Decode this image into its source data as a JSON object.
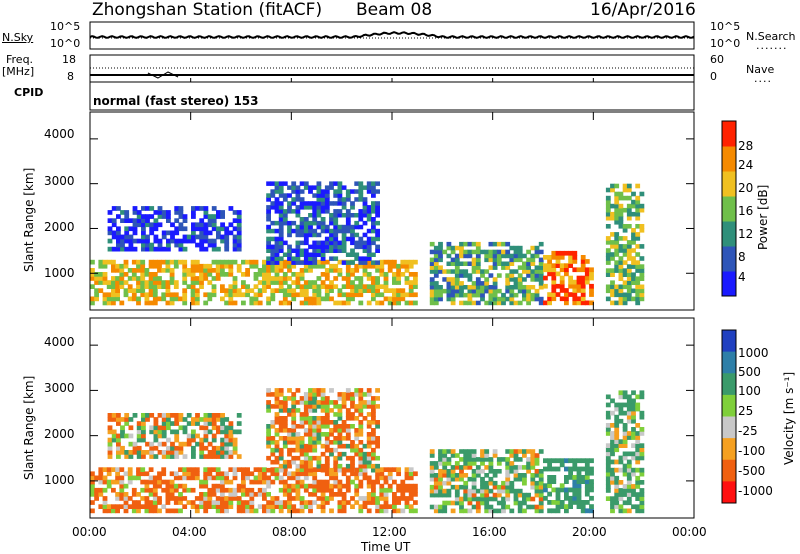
{
  "header": {
    "station": "Zhongshan Station (fitACF)",
    "beam": "Beam 08",
    "date": "16/Apr/2016"
  },
  "top_panels": {
    "nsky_label": "N.Sky",
    "nsky_ticks": [
      "10^5",
      "10^0"
    ],
    "nsearch_label": "N.Search",
    "nsearch_ticks": [
      "10^5",
      "10^0"
    ],
    "freq_label": "Freq.",
    "freq_unit": "[MHz]",
    "freq_ticks": [
      "18",
      "8"
    ],
    "nave_label": "Nave",
    "nave_ticks": [
      "60",
      "0"
    ],
    "cpid_label": "CPID",
    "mode_text": "normal (fast stereo) 153"
  },
  "chart_data": [
    {
      "type": "heatmap",
      "name": "Power",
      "ylabel": "Slant Range [km]",
      "xlabel": "Time UT",
      "x_ticks": [
        "00:00",
        "04:00",
        "08:00",
        "12:00",
        "16:00",
        "20:00",
        "00:00"
      ],
      "y_ticks": [
        1000,
        2000,
        3000,
        4000
      ],
      "ylim": [
        180,
        4600
      ],
      "colorbar": {
        "label": "Power [dB]",
        "ticks": [
          4,
          8,
          12,
          16,
          20,
          24,
          28
        ],
        "colors": [
          "#1a1aff",
          "#2e55b8",
          "#2f8f7a",
          "#6fbf4a",
          "#f0c020",
          "#f58a00",
          "#ff2200"
        ]
      },
      "regions": [
        {
          "t": [
            0.7,
            6.0
          ],
          "r": [
            1500,
            2500
          ],
          "v": 6
        },
        {
          "t": [
            0.0,
            13.0
          ],
          "r": [
            300,
            1300
          ],
          "v": 20
        },
        {
          "t": [
            7.0,
            11.5
          ],
          "r": [
            1200,
            3050
          ],
          "v": 8
        },
        {
          "t": [
            13.5,
            18.0
          ],
          "r": [
            300,
            1700
          ],
          "v": 14
        },
        {
          "t": [
            18.0,
            20.0
          ],
          "r": [
            300,
            1500
          ],
          "v": 24
        },
        {
          "t": [
            20.5,
            22.0
          ],
          "r": [
            300,
            3000
          ],
          "v": 16
        }
      ]
    },
    {
      "type": "heatmap",
      "name": "Velocity",
      "ylabel": "Slant Range [km]",
      "xlabel": "Time UT",
      "x_ticks": [
        "00:00",
        "04:00",
        "08:00",
        "12:00",
        "16:00",
        "20:00",
        "00:00"
      ],
      "y_ticks": [
        1000,
        2000,
        3000,
        4000
      ],
      "ylim": [
        180,
        4600
      ],
      "colorbar": {
        "label": "Velocity [m s⁻¹]",
        "ticks": [
          "1000",
          "500",
          "100",
          "25",
          "-25",
          "-100",
          "-500",
          "-1000"
        ],
        "colors": [
          "#2040c0",
          "#2e7fa8",
          "#3a9a6a",
          "#7fcf3a",
          "#c8c8c8",
          "#f5a020",
          "#f06010",
          "#ff1010"
        ]
      },
      "regions": [
        {
          "t": [
            0.7,
            6.0
          ],
          "r": [
            1500,
            2500
          ],
          "v": 0
        },
        {
          "t": [
            0.0,
            13.0
          ],
          "r": [
            300,
            1300
          ],
          "v": -150
        },
        {
          "t": [
            7.0,
            11.5
          ],
          "r": [
            1200,
            3050
          ],
          "v": -100
        },
        {
          "t": [
            13.5,
            18.0
          ],
          "r": [
            300,
            1700
          ],
          "v": 100
        },
        {
          "t": [
            18.0,
            20.0
          ],
          "r": [
            300,
            1500
          ],
          "v": 300
        },
        {
          "t": [
            20.5,
            22.0
          ],
          "r": [
            300,
            3000
          ],
          "v": 150
        }
      ]
    }
  ]
}
